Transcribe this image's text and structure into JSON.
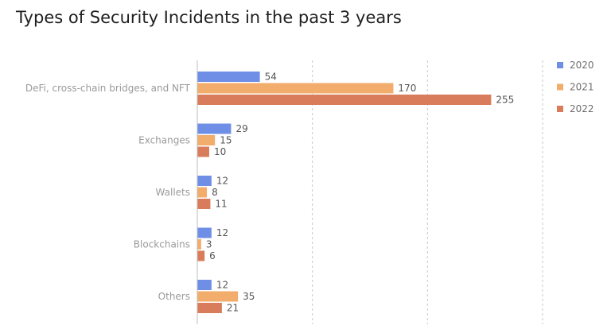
{
  "chart_data": {
    "type": "bar",
    "orientation": "horizontal",
    "title": "Types of Security Incidents in the past 3 years",
    "categories": [
      "DeFi, cross-chain bridges, and NFT",
      "Exchanges",
      "Wallets",
      "Blockchains",
      "Others"
    ],
    "series": [
      {
        "name": "2020",
        "color": "#6f8fe6",
        "values": [
          54,
          29,
          12,
          12,
          12
        ]
      },
      {
        "name": "2021",
        "color": "#f2ac6c",
        "values": [
          170,
          15,
          8,
          3,
          35
        ]
      },
      {
        "name": "2022",
        "color": "#d97c5c",
        "values": [
          255,
          10,
          11,
          6,
          21
        ]
      }
    ],
    "xlim": [
      0,
      300
    ],
    "grid": true,
    "legend_position": "right"
  }
}
